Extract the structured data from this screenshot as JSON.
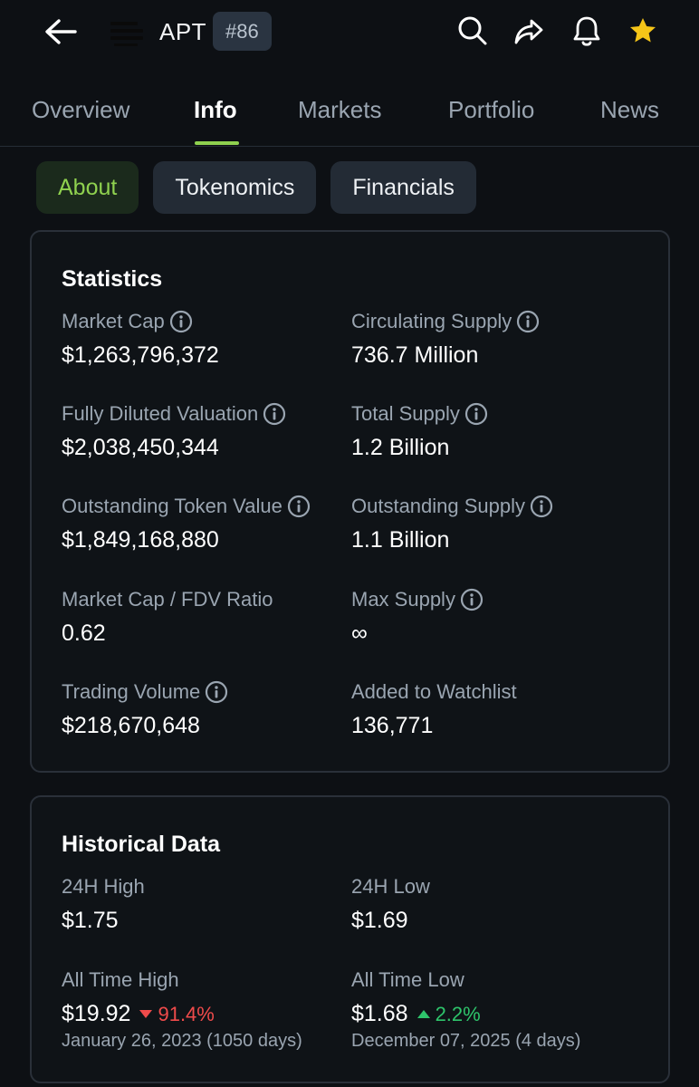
{
  "header": {
    "symbol": "APT",
    "rank": "#86"
  },
  "tabs": [
    {
      "label": "Overview",
      "active": false
    },
    {
      "label": "Info",
      "active": true
    },
    {
      "label": "Markets",
      "active": false
    },
    {
      "label": "Portfolio",
      "active": false
    },
    {
      "label": "News",
      "active": false
    }
  ],
  "subtabs": [
    {
      "label": "About",
      "active": true
    },
    {
      "label": "Tokenomics",
      "active": false
    },
    {
      "label": "Financials",
      "active": false
    }
  ],
  "statistics": {
    "title": "Statistics",
    "items": [
      {
        "label": "Market Cap",
        "value": "$1,263,796,372",
        "info": true
      },
      {
        "label": "Circulating Supply",
        "value": "736.7 Million",
        "info": true
      },
      {
        "label": "Fully Diluted Valuation",
        "value": "$2,038,450,344",
        "info": true
      },
      {
        "label": "Total Supply",
        "value": "1.2 Billion",
        "info": true
      },
      {
        "label": "Outstanding Token Value",
        "value": "$1,849,168,880",
        "info": true
      },
      {
        "label": "Outstanding Supply",
        "value": "1.1 Billion",
        "info": true
      },
      {
        "label": "Market Cap / FDV Ratio",
        "value": "0.62",
        "info": false
      },
      {
        "label": "Max Supply",
        "value": "∞",
        "info": true
      },
      {
        "label": "Trading Volume",
        "value": "$218,670,648",
        "info": true
      },
      {
        "label": "Added to Watchlist",
        "value": "136,771",
        "info": false
      }
    ]
  },
  "historical": {
    "title": "Historical Data",
    "high_24h": {
      "label": "24H High",
      "value": "$1.75"
    },
    "low_24h": {
      "label": "24H Low",
      "value": "$1.69"
    },
    "ath": {
      "label": "All Time High",
      "value": "$19.92",
      "change": "91.4%",
      "direction": "down",
      "date": "January 26, 2023 (1050 days)"
    },
    "atl": {
      "label": "All Time Low",
      "value": "$1.68",
      "change": "2.2%",
      "direction": "up",
      "date": "December 07, 2025 (4 days)"
    }
  },
  "colors": {
    "accent": "#8fd14f",
    "down": "#f04b4b",
    "up": "#2ec46b",
    "star": "#f5c518"
  },
  "icons": [
    "back-arrow-icon",
    "apt-logo-icon",
    "search-icon",
    "share-icon",
    "bell-icon",
    "star-icon",
    "info-icon",
    "triangle-down-icon",
    "triangle-up-icon"
  ]
}
